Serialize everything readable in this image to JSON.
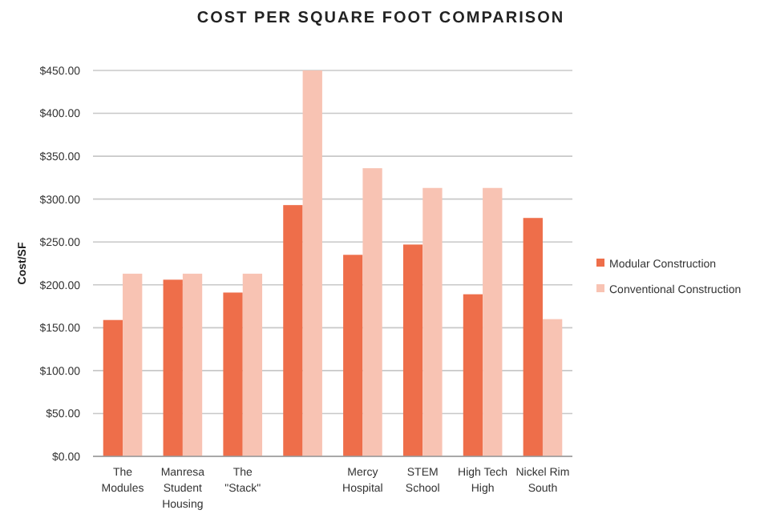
{
  "chart_data": {
    "type": "bar",
    "title": "COST PER SQUARE FOOT COMPARISON",
    "ylabel": "Cost/SF",
    "categories": [
      "The Modules",
      "Manresa Student Housing",
      "The \"Stack\"",
      null,
      "Mercy Hospital",
      "STEM School",
      "High Tech High",
      "Nickel Rim South"
    ],
    "series": [
      {
        "name": "Modular Construction",
        "color": "#ee6e4a",
        "values": [
          159,
          206,
          191,
          293,
          235,
          247,
          189,
          278
        ]
      },
      {
        "name": "Conventional Construction",
        "color": "#f8c3b3",
        "values": [
          213,
          213,
          213,
          450,
          336,
          313,
          313,
          160
        ]
      }
    ],
    "ylim": [
      0,
      450
    ],
    "yticks": [
      {
        "value": 0,
        "label": "$0.00"
      },
      {
        "value": 50,
        "label": "$50.00"
      },
      {
        "value": 100,
        "label": "$100.00"
      },
      {
        "value": 150,
        "label": "$150.00"
      },
      {
        "value": 200,
        "label": "$200.00"
      },
      {
        "value": 250,
        "label": "$250.00"
      },
      {
        "value": 300,
        "label": "$300.00"
      },
      {
        "value": 350,
        "label": "$350.00"
      },
      {
        "value": 400,
        "label": "$400.00"
      },
      {
        "value": 450,
        "label": "$450.00"
      }
    ],
    "grid": "y",
    "legend": "right"
  }
}
